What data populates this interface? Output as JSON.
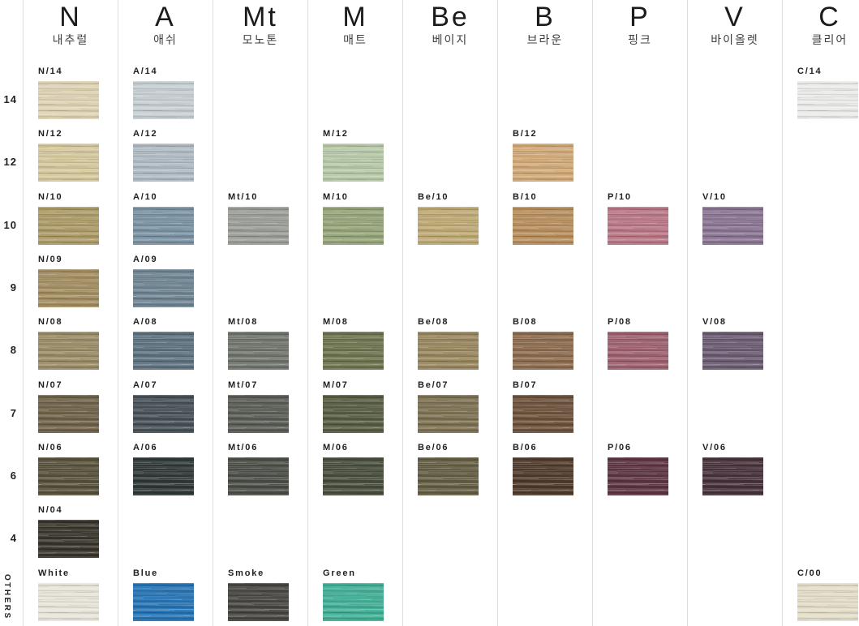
{
  "page": {
    "background": "#ffffff",
    "divider_color": "#dedede"
  },
  "row_axis": {
    "levels": [
      "14",
      "12",
      "10",
      "9",
      "8",
      "7",
      "6",
      "4"
    ],
    "others_label": "OTHERS"
  },
  "chart_data": {
    "type": "table",
    "description": "Hair color swatch chart: tone families (columns) by lightness level (rows 14-4 plus OTHERS)",
    "rows": [
      "14",
      "12",
      "10",
      "9",
      "8",
      "7",
      "6",
      "4",
      "OTHERS"
    ],
    "columns": [
      {
        "code": "N",
        "korean": "내추럴",
        "cells": [
          {
            "row": "14",
            "label": "N/14",
            "color": "#ded2b3"
          },
          {
            "row": "12",
            "label": "N/12",
            "color": "#d4c79c"
          },
          {
            "row": "10",
            "label": "N/10",
            "color": "#ab9966"
          },
          {
            "row": "9",
            "label": "N/09",
            "color": "#a28c5f"
          },
          {
            "row": "8",
            "label": "N/08",
            "color": "#988a64"
          },
          {
            "row": "7",
            "label": "N/07",
            "color": "#6d6047"
          },
          {
            "row": "6",
            "label": "N/06",
            "color": "#565039"
          },
          {
            "row": "4",
            "label": "N/04",
            "color": "#37332a"
          },
          {
            "row": "OTHERS",
            "label": "White",
            "color": "#e8e4da"
          }
        ]
      },
      {
        "code": "A",
        "korean": "애쉬",
        "cells": [
          {
            "row": "14",
            "label": "A/14",
            "color": "#c6ced2"
          },
          {
            "row": "12",
            "label": "A/12",
            "color": "#afbac2"
          },
          {
            "row": "10",
            "label": "A/10",
            "color": "#7991a1"
          },
          {
            "row": "9",
            "label": "A/09",
            "color": "#6d8391"
          },
          {
            "row": "8",
            "label": "A/08",
            "color": "#5c707d"
          },
          {
            "row": "7",
            "label": "A/07",
            "color": "#454f55"
          },
          {
            "row": "6",
            "label": "A/06",
            "color": "#2e3636"
          },
          {
            "row": "OTHERS",
            "label": "Blue",
            "color": "#2472b3"
          }
        ]
      },
      {
        "code": "Mt",
        "korean": "모노톤",
        "cells": [
          {
            "row": "10",
            "label": "Mt/10",
            "color": "#9a9c96"
          },
          {
            "row": "8",
            "label": "Mt/08",
            "color": "#6e736a"
          },
          {
            "row": "7",
            "label": "Mt/07",
            "color": "#575b53"
          },
          {
            "row": "6",
            "label": "Mt/06",
            "color": "#494d45"
          },
          {
            "row": "OTHERS",
            "label": "Smoke",
            "color": "#454440"
          }
        ]
      },
      {
        "code": "M",
        "korean": "매트",
        "cells": [
          {
            "row": "12",
            "label": "M/12",
            "color": "#b6c8a7"
          },
          {
            "row": "10",
            "label": "M/10",
            "color": "#94a378"
          },
          {
            "row": "8",
            "label": "M/08",
            "color": "#6c724e"
          },
          {
            "row": "7",
            "label": "M/07",
            "color": "#555b41"
          },
          {
            "row": "6",
            "label": "M/06",
            "color": "#464c3b"
          },
          {
            "row": "OTHERS",
            "label": "Green",
            "color": "#40ae94"
          }
        ]
      },
      {
        "code": "Be",
        "korean": "베이지",
        "cells": [
          {
            "row": "10",
            "label": "Be/10",
            "color": "#bda873"
          },
          {
            "row": "8",
            "label": "Be/08",
            "color": "#97855c"
          },
          {
            "row": "7",
            "label": "Be/07",
            "color": "#7b6f50"
          },
          {
            "row": "6",
            "label": "Be/06",
            "color": "#635c42"
          }
        ]
      },
      {
        "code": "B",
        "korean": "브라운",
        "cells": [
          {
            "row": "12",
            "label": "B/12",
            "color": "#d0a877"
          },
          {
            "row": "10",
            "label": "B/10",
            "color": "#b68d5c"
          },
          {
            "row": "8",
            "label": "B/08",
            "color": "#8b6a4d"
          },
          {
            "row": "7",
            "label": "B/07",
            "color": "#6b503a"
          },
          {
            "row": "6",
            "label": "B/06",
            "color": "#4e392a"
          }
        ]
      },
      {
        "code": "P",
        "korean": "핑크",
        "cells": [
          {
            "row": "10",
            "label": "P/10",
            "color": "#b87584"
          },
          {
            "row": "8",
            "label": "P/08",
            "color": "#9c5f6d"
          },
          {
            "row": "6",
            "label": "P/06",
            "color": "#5c3340"
          }
        ]
      },
      {
        "code": "V",
        "korean": "바이올렛",
        "cells": [
          {
            "row": "10",
            "label": "V/10",
            "color": "#887390"
          },
          {
            "row": "8",
            "label": "V/08",
            "color": "#6a5a70"
          },
          {
            "row": "6",
            "label": "V/06",
            "color": "#463039"
          }
        ]
      },
      {
        "code": "C",
        "korean": "클리어",
        "cells": [
          {
            "row": "14",
            "label": "C/14",
            "color": "#ebebea"
          },
          {
            "row": "OTHERS",
            "label": "C/00",
            "color": "#e3ddc8"
          }
        ]
      }
    ]
  }
}
